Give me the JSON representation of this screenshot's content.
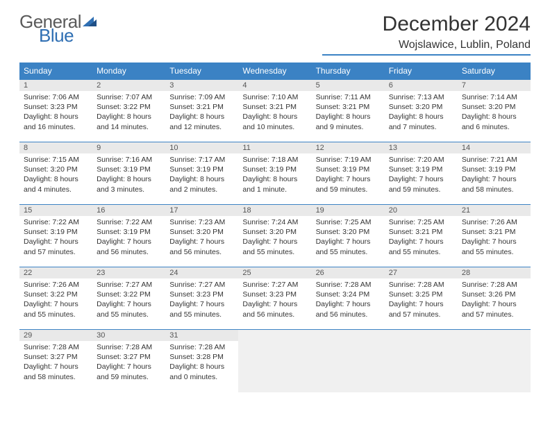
{
  "logo": {
    "text1": "General",
    "text2": "Blue"
  },
  "title": "December 2024",
  "location": "Wojslawice, Lublin, Poland",
  "colors": {
    "header_bg": "#3b82c4",
    "header_fg": "#ffffff",
    "daynum_bg": "#e9e9e9",
    "border": "#3b82c4",
    "logo_gray": "#5a5a5a",
    "logo_blue": "#2f6fb3",
    "empty_bg": "#f0f0f0"
  },
  "day_headers": [
    "Sunday",
    "Monday",
    "Tuesday",
    "Wednesday",
    "Thursday",
    "Friday",
    "Saturday"
  ],
  "weeks": [
    [
      {
        "n": "1",
        "sunrise": "Sunrise: 7:06 AM",
        "sunset": "Sunset: 3:23 PM",
        "daylight": "Daylight: 8 hours and 16 minutes."
      },
      {
        "n": "2",
        "sunrise": "Sunrise: 7:07 AM",
        "sunset": "Sunset: 3:22 PM",
        "daylight": "Daylight: 8 hours and 14 minutes."
      },
      {
        "n": "3",
        "sunrise": "Sunrise: 7:09 AM",
        "sunset": "Sunset: 3:21 PM",
        "daylight": "Daylight: 8 hours and 12 minutes."
      },
      {
        "n": "4",
        "sunrise": "Sunrise: 7:10 AM",
        "sunset": "Sunset: 3:21 PM",
        "daylight": "Daylight: 8 hours and 10 minutes."
      },
      {
        "n": "5",
        "sunrise": "Sunrise: 7:11 AM",
        "sunset": "Sunset: 3:21 PM",
        "daylight": "Daylight: 8 hours and 9 minutes."
      },
      {
        "n": "6",
        "sunrise": "Sunrise: 7:13 AM",
        "sunset": "Sunset: 3:20 PM",
        "daylight": "Daylight: 8 hours and 7 minutes."
      },
      {
        "n": "7",
        "sunrise": "Sunrise: 7:14 AM",
        "sunset": "Sunset: 3:20 PM",
        "daylight": "Daylight: 8 hours and 6 minutes."
      }
    ],
    [
      {
        "n": "8",
        "sunrise": "Sunrise: 7:15 AM",
        "sunset": "Sunset: 3:20 PM",
        "daylight": "Daylight: 8 hours and 4 minutes."
      },
      {
        "n": "9",
        "sunrise": "Sunrise: 7:16 AM",
        "sunset": "Sunset: 3:19 PM",
        "daylight": "Daylight: 8 hours and 3 minutes."
      },
      {
        "n": "10",
        "sunrise": "Sunrise: 7:17 AM",
        "sunset": "Sunset: 3:19 PM",
        "daylight": "Daylight: 8 hours and 2 minutes."
      },
      {
        "n": "11",
        "sunrise": "Sunrise: 7:18 AM",
        "sunset": "Sunset: 3:19 PM",
        "daylight": "Daylight: 8 hours and 1 minute."
      },
      {
        "n": "12",
        "sunrise": "Sunrise: 7:19 AM",
        "sunset": "Sunset: 3:19 PM",
        "daylight": "Daylight: 7 hours and 59 minutes."
      },
      {
        "n": "13",
        "sunrise": "Sunrise: 7:20 AM",
        "sunset": "Sunset: 3:19 PM",
        "daylight": "Daylight: 7 hours and 59 minutes."
      },
      {
        "n": "14",
        "sunrise": "Sunrise: 7:21 AM",
        "sunset": "Sunset: 3:19 PM",
        "daylight": "Daylight: 7 hours and 58 minutes."
      }
    ],
    [
      {
        "n": "15",
        "sunrise": "Sunrise: 7:22 AM",
        "sunset": "Sunset: 3:19 PM",
        "daylight": "Daylight: 7 hours and 57 minutes."
      },
      {
        "n": "16",
        "sunrise": "Sunrise: 7:22 AM",
        "sunset": "Sunset: 3:19 PM",
        "daylight": "Daylight: 7 hours and 56 minutes."
      },
      {
        "n": "17",
        "sunrise": "Sunrise: 7:23 AM",
        "sunset": "Sunset: 3:20 PM",
        "daylight": "Daylight: 7 hours and 56 minutes."
      },
      {
        "n": "18",
        "sunrise": "Sunrise: 7:24 AM",
        "sunset": "Sunset: 3:20 PM",
        "daylight": "Daylight: 7 hours and 55 minutes."
      },
      {
        "n": "19",
        "sunrise": "Sunrise: 7:25 AM",
        "sunset": "Sunset: 3:20 PM",
        "daylight": "Daylight: 7 hours and 55 minutes."
      },
      {
        "n": "20",
        "sunrise": "Sunrise: 7:25 AM",
        "sunset": "Sunset: 3:21 PM",
        "daylight": "Daylight: 7 hours and 55 minutes."
      },
      {
        "n": "21",
        "sunrise": "Sunrise: 7:26 AM",
        "sunset": "Sunset: 3:21 PM",
        "daylight": "Daylight: 7 hours and 55 minutes."
      }
    ],
    [
      {
        "n": "22",
        "sunrise": "Sunrise: 7:26 AM",
        "sunset": "Sunset: 3:22 PM",
        "daylight": "Daylight: 7 hours and 55 minutes."
      },
      {
        "n": "23",
        "sunrise": "Sunrise: 7:27 AM",
        "sunset": "Sunset: 3:22 PM",
        "daylight": "Daylight: 7 hours and 55 minutes."
      },
      {
        "n": "24",
        "sunrise": "Sunrise: 7:27 AM",
        "sunset": "Sunset: 3:23 PM",
        "daylight": "Daylight: 7 hours and 55 minutes."
      },
      {
        "n": "25",
        "sunrise": "Sunrise: 7:27 AM",
        "sunset": "Sunset: 3:23 PM",
        "daylight": "Daylight: 7 hours and 56 minutes."
      },
      {
        "n": "26",
        "sunrise": "Sunrise: 7:28 AM",
        "sunset": "Sunset: 3:24 PM",
        "daylight": "Daylight: 7 hours and 56 minutes."
      },
      {
        "n": "27",
        "sunrise": "Sunrise: 7:28 AM",
        "sunset": "Sunset: 3:25 PM",
        "daylight": "Daylight: 7 hours and 57 minutes."
      },
      {
        "n": "28",
        "sunrise": "Sunrise: 7:28 AM",
        "sunset": "Sunset: 3:26 PM",
        "daylight": "Daylight: 7 hours and 57 minutes."
      }
    ],
    [
      {
        "n": "29",
        "sunrise": "Sunrise: 7:28 AM",
        "sunset": "Sunset: 3:27 PM",
        "daylight": "Daylight: 7 hours and 58 minutes."
      },
      {
        "n": "30",
        "sunrise": "Sunrise: 7:28 AM",
        "sunset": "Sunset: 3:27 PM",
        "daylight": "Daylight: 7 hours and 59 minutes."
      },
      {
        "n": "31",
        "sunrise": "Sunrise: 7:28 AM",
        "sunset": "Sunset: 3:28 PM",
        "daylight": "Daylight: 8 hours and 0 minutes."
      },
      null,
      null,
      null,
      null
    ]
  ]
}
